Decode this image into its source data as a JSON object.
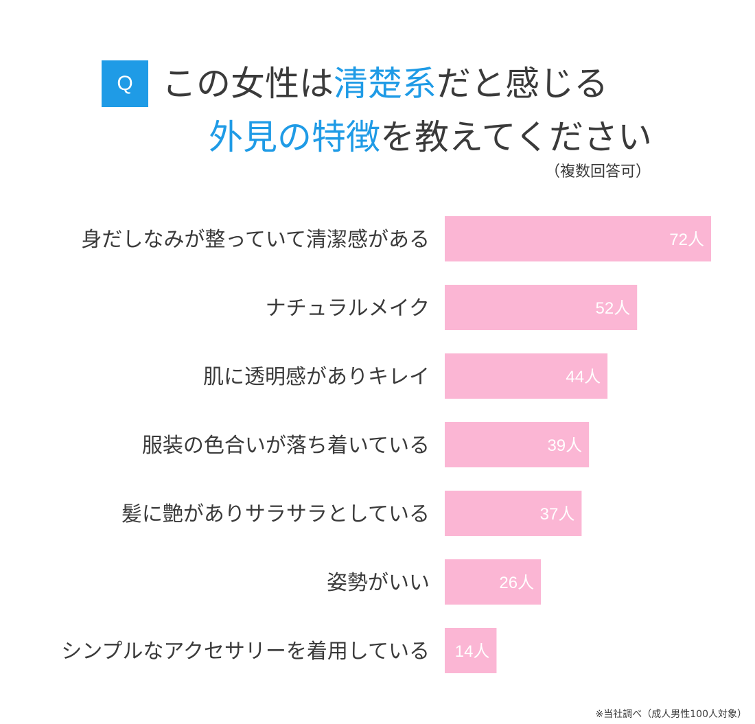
{
  "header": {
    "q_badge": "Q",
    "line1_part1": "この女性は",
    "line1_highlight": "清楚系",
    "line1_part2": "だと感じる",
    "line2_highlight": "外見の特徴",
    "line2_part2": "を教えてください",
    "note": "（複数回答可）"
  },
  "colors": {
    "accent": "#1f9be6",
    "bar": "#fbb6d4",
    "text": "#3a3a3a"
  },
  "chart_data": {
    "type": "bar",
    "orientation": "horizontal",
    "categories": [
      "身だしなみが整っていて清潔感がある",
      "ナチュラルメイク",
      "肌に透明感がありキレイ",
      "服装の色合いが落ち着いている",
      "髪に艶がありサラサラとしている",
      "姿勢がいい",
      "シンプルなアクセサリーを着用している"
    ],
    "values": [
      72,
      52,
      44,
      39,
      37,
      26,
      14
    ],
    "value_labels": [
      "72人",
      "52人",
      "44人",
      "39人",
      "37人",
      "26人",
      "14人"
    ],
    "unit": "人",
    "xlim": [
      0,
      72
    ],
    "grid": false,
    "legend": "none"
  },
  "footnote": "※当社調べ（成人男性100人対象）"
}
